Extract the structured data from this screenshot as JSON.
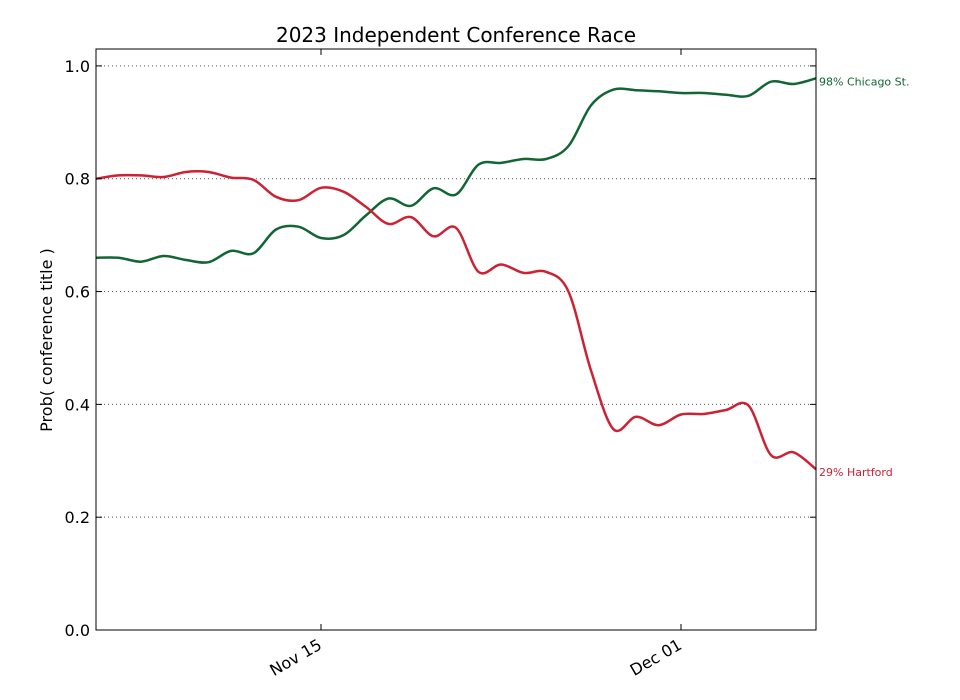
{
  "chart_data": {
    "type": "line",
    "title": "2023 Independent Conference Race",
    "xlabel": "",
    "ylabel": "Prob( conference title )",
    "x_ticks": [
      {
        "day": 15,
        "label": "Nov 15"
      },
      {
        "day": 31,
        "label": "Dec 01"
      }
    ],
    "xlim": [
      5,
      37
    ],
    "ylim": [
      0,
      1.03
    ],
    "y_ticks": [
      0.0,
      0.2,
      0.4,
      0.6,
      0.8,
      1.0
    ],
    "y_tick_labels": [
      "0.0",
      "0.2",
      "0.4",
      "0.6",
      "0.8",
      "1.0"
    ],
    "grid": "horizontal-dotted",
    "series": [
      {
        "name": "Chicago St.",
        "end_label": "98% Chicago St.",
        "color": "#116633",
        "x": [
          5,
          6,
          7,
          8,
          9,
          10,
          11,
          12,
          13,
          14,
          15,
          16,
          17,
          18,
          19,
          20,
          21,
          22,
          23,
          24,
          25,
          26,
          27,
          28,
          29,
          30,
          31,
          32,
          33,
          34,
          35,
          36,
          37
        ],
        "y": [
          0.66,
          0.66,
          0.653,
          0.663,
          0.656,
          0.652,
          0.672,
          0.668,
          0.71,
          0.715,
          0.695,
          0.7,
          0.735,
          0.765,
          0.752,
          0.783,
          0.772,
          0.825,
          0.828,
          0.835,
          0.835,
          0.858,
          0.93,
          0.958,
          0.957,
          0.955,
          0.952,
          0.952,
          0.949,
          0.947,
          0.972,
          0.968,
          0.978
        ]
      },
      {
        "name": "Hartford",
        "end_label": "29% Hartford",
        "color": "#cc2233",
        "x": [
          5,
          6,
          7,
          8,
          9,
          10,
          11,
          12,
          13,
          14,
          15,
          16,
          17,
          18,
          19,
          20,
          21,
          22,
          23,
          24,
          25,
          26,
          27,
          28,
          29,
          30,
          31,
          32,
          33,
          34,
          35,
          36,
          37
        ],
        "y": [
          0.8,
          0.806,
          0.806,
          0.803,
          0.812,
          0.812,
          0.802,
          0.798,
          0.768,
          0.762,
          0.784,
          0.777,
          0.75,
          0.72,
          0.732,
          0.698,
          0.713,
          0.635,
          0.648,
          0.633,
          0.635,
          0.6,
          0.46,
          0.356,
          0.378,
          0.363,
          0.382,
          0.383,
          0.39,
          0.398,
          0.31,
          0.315,
          0.285
        ]
      }
    ]
  }
}
